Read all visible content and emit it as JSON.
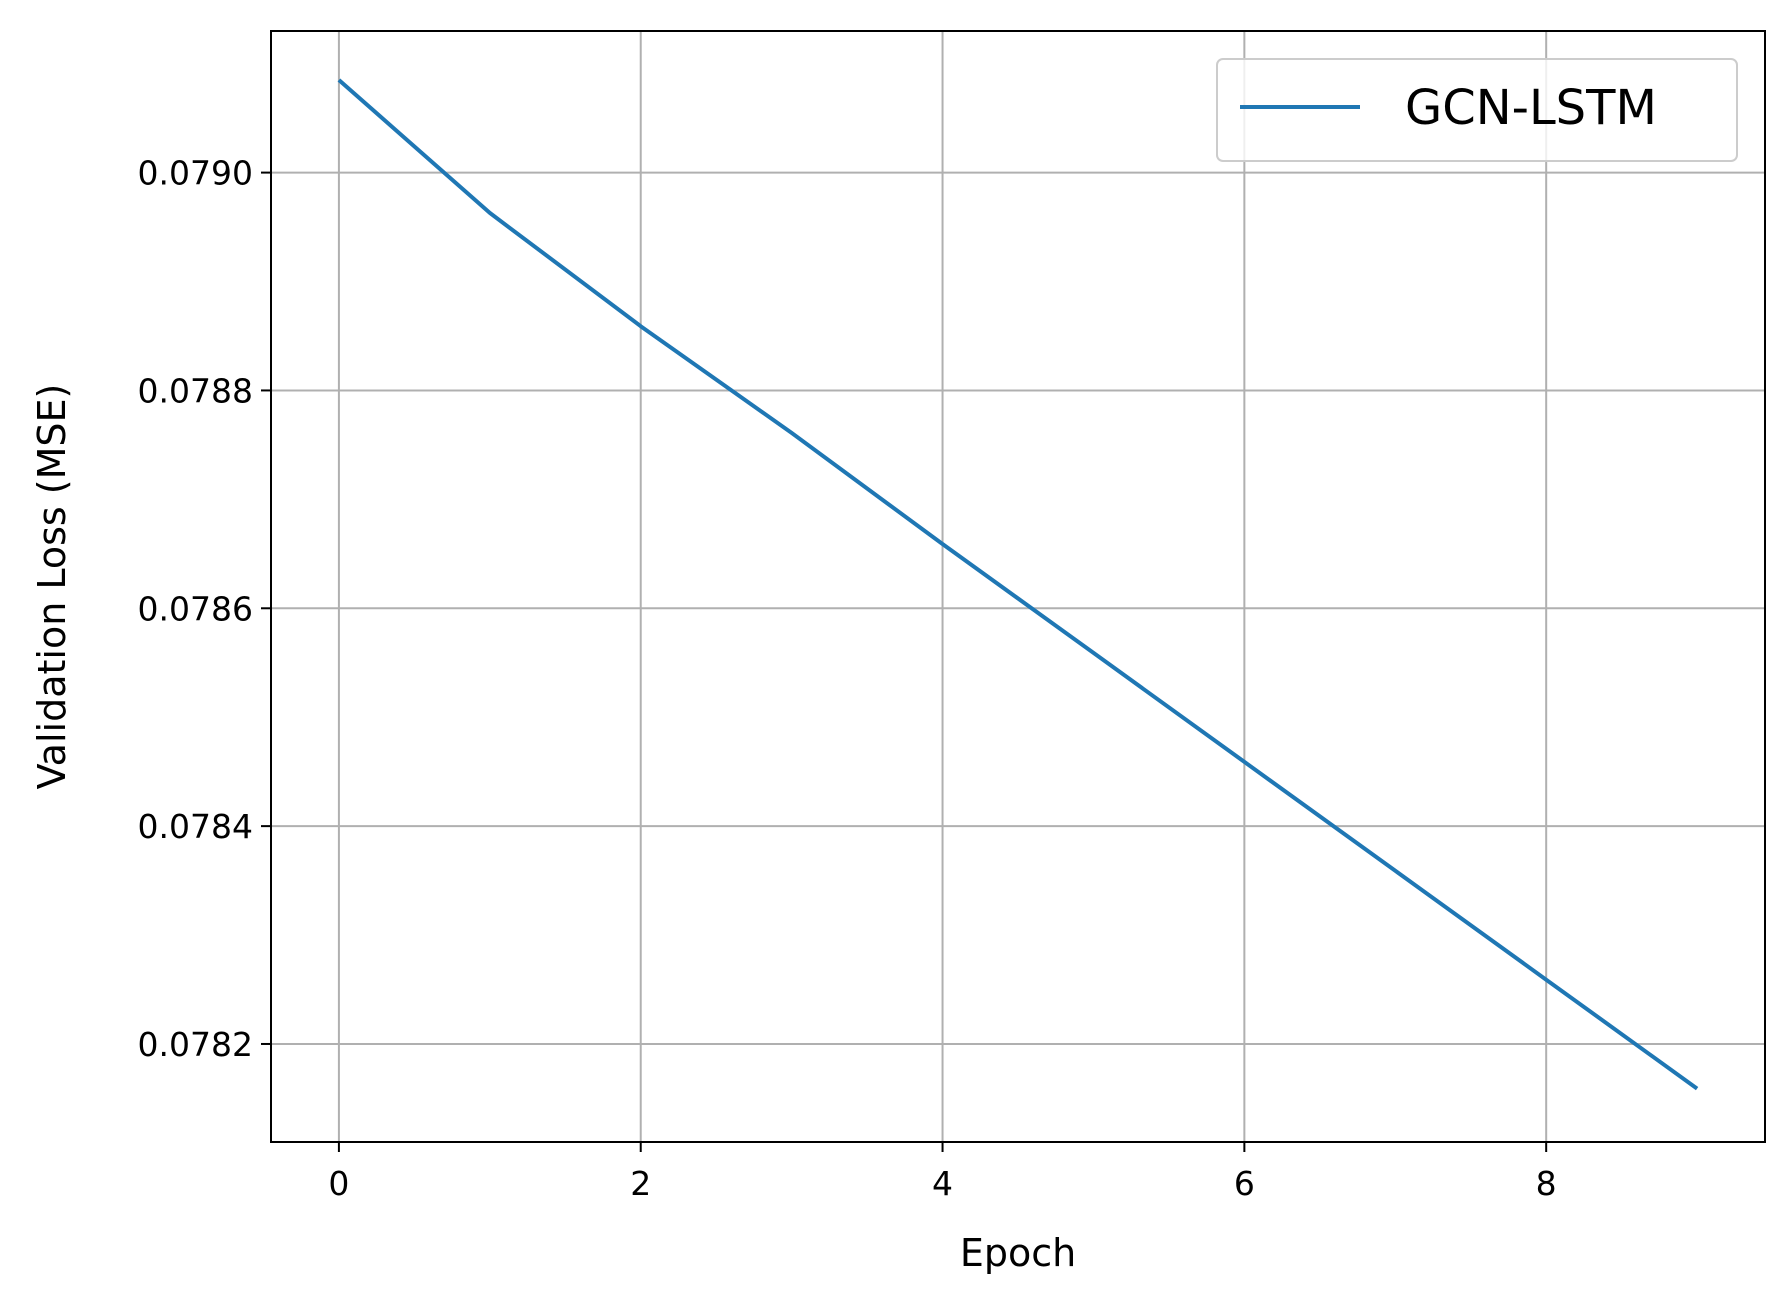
{
  "chart_data": {
    "type": "line",
    "title": "",
    "xlabel": "Epoch",
    "ylabel": "Validation Loss (MSE)",
    "xlim": [
      -0.45,
      9.45
    ],
    "ylim": [
      0.07811,
      0.07913
    ],
    "xticks": [
      0,
      2,
      4,
      6,
      8
    ],
    "yticks": [
      0.0782,
      0.0784,
      0.0786,
      0.0788,
      0.079
    ],
    "xtick_labels": [
      "0",
      "2",
      "4",
      "6",
      "8"
    ],
    "ytick_labels": [
      "0.0782",
      "0.0784",
      "0.0786",
      "0.0788",
      "0.0790"
    ],
    "grid": true,
    "legend": {
      "position": "top-right"
    },
    "series": [
      {
        "name": "GCN-LSTM",
        "color": "#1f77b4",
        "x": [
          0,
          1,
          2,
          3,
          4,
          5,
          6,
          7,
          8,
          9
        ],
        "y": [
          0.079085,
          0.078963,
          0.078859,
          0.078761,
          0.078659,
          0.078559,
          0.078459,
          0.078359,
          0.078259,
          0.078159
        ]
      }
    ]
  }
}
